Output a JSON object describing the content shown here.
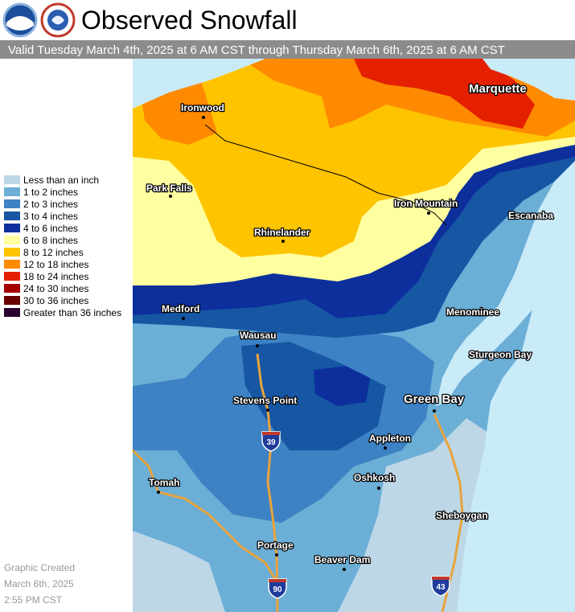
{
  "header": {
    "title": "Observed Snowfall",
    "subtitle": "Valid Tuesday March 4th, 2025 at 6 AM CST through Thursday March 6th, 2025 at 6 AM CST"
  },
  "legend": [
    {
      "label": "Less than an inch",
      "color": "#bdd7e7"
    },
    {
      "label": "1 to 2 inches",
      "color": "#6baed6"
    },
    {
      "label": "2 to 3 inches",
      "color": "#3d82c4"
    },
    {
      "label": "3 to 4 inches",
      "color": "#1656a3"
    },
    {
      "label": "4 to 6 inches",
      "color": "#0c2f9c"
    },
    {
      "label": "6 to 8 inches",
      "color": "#ffffa0"
    },
    {
      "label": "8 to 12 inches",
      "color": "#ffc400"
    },
    {
      "label": "12 to 18 inches",
      "color": "#ff8a00"
    },
    {
      "label": "18 to 24 inches",
      "color": "#e42000"
    },
    {
      "label": "24 to 30 inches",
      "color": "#a50000"
    },
    {
      "label": "30 to 36 inches",
      "color": "#6b0000"
    },
    {
      "label": "Greater than 36 inches",
      "color": "#2a0030"
    }
  ],
  "cities": [
    "Marquette",
    "Ironwood",
    "Park Falls",
    "Rhinelander",
    "Iron Mountain",
    "Escanaba",
    "Medford",
    "Wausau",
    "Menominee",
    "Sturgeon Bay",
    "Stevens Point",
    "Green Bay",
    "Appleton",
    "Oshkosh",
    "Tomah",
    "Sheboygan",
    "Portage",
    "Beaver Dam"
  ],
  "highways": [
    "39",
    "90",
    "43"
  ],
  "footer": [
    "Graphic Created",
    "March 6th, 2025",
    "2:55 PM CST"
  ]
}
